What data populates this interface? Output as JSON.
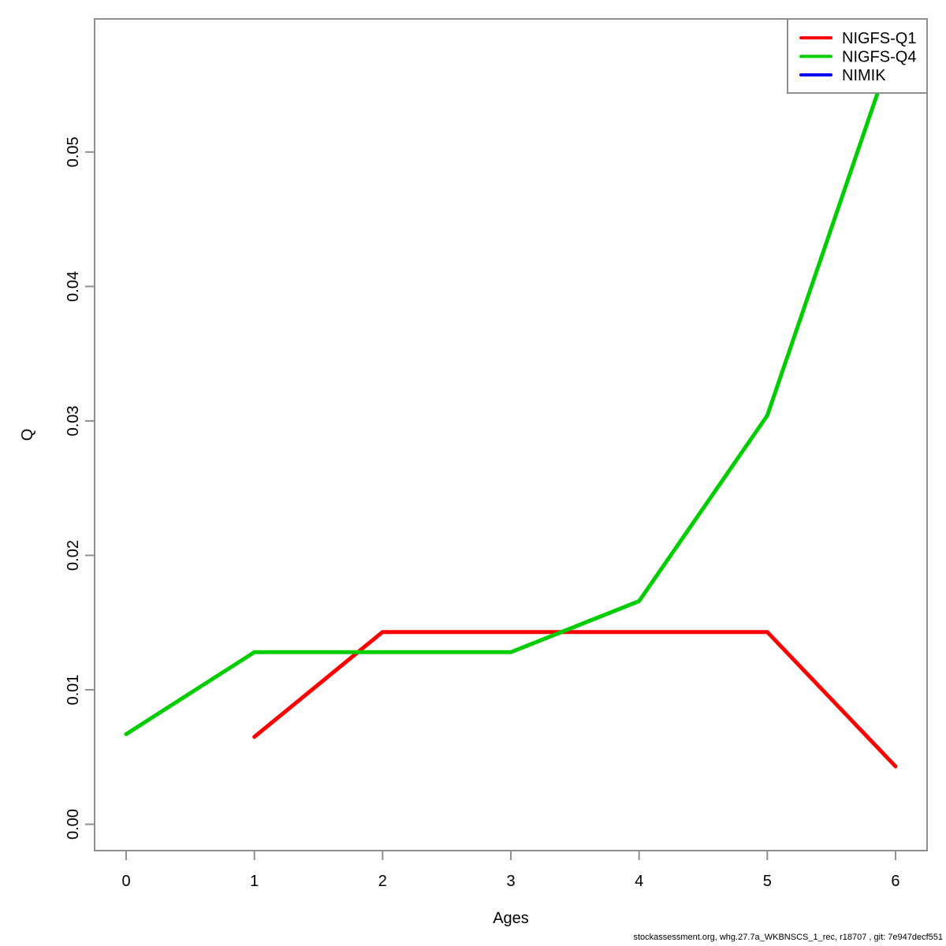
{
  "chart_data": {
    "type": "line",
    "title": "",
    "xlabel": "Ages",
    "ylabel": "Q",
    "xlim": [
      -0.246,
      6.246
    ],
    "ylim": [
      -0.00196,
      0.0599
    ],
    "x_ticks": [
      0,
      1,
      2,
      3,
      4,
      5,
      6
    ],
    "x_tick_labels": [
      "0",
      "1",
      "2",
      "3",
      "4",
      "5",
      "6"
    ],
    "y_ticks": [
      0,
      0.01,
      0.02,
      0.03,
      0.04,
      0.05
    ],
    "y_tick_labels": [
      "0.00",
      "0.01",
      "0.02",
      "0.03",
      "0.04",
      "0.05"
    ],
    "grid": false,
    "legend_position": "top-right",
    "series": [
      {
        "name": "NIGFS-Q1",
        "color": "#FF0000",
        "x": [
          1,
          2,
          3,
          4,
          5,
          6
        ],
        "y": [
          0.0065,
          0.0143,
          0.0143,
          0.0143,
          0.0143,
          0.0043
        ]
      },
      {
        "name": "NIGFS-Q4",
        "color": "#00CD00",
        "x": [
          0,
          1,
          2,
          3,
          4,
          5,
          6
        ],
        "y": [
          0.0067,
          0.0128,
          0.0128,
          0.0128,
          0.0166,
          0.0304,
          0.0583
        ]
      },
      {
        "name": "NIMIK",
        "color": "#0000FF",
        "x": [],
        "y": []
      }
    ]
  },
  "footer": {
    "credit": "stockassessment.org, whg.27.7a_WKBNSCS_1_rec, r18707 , git: 7e947decf551"
  }
}
